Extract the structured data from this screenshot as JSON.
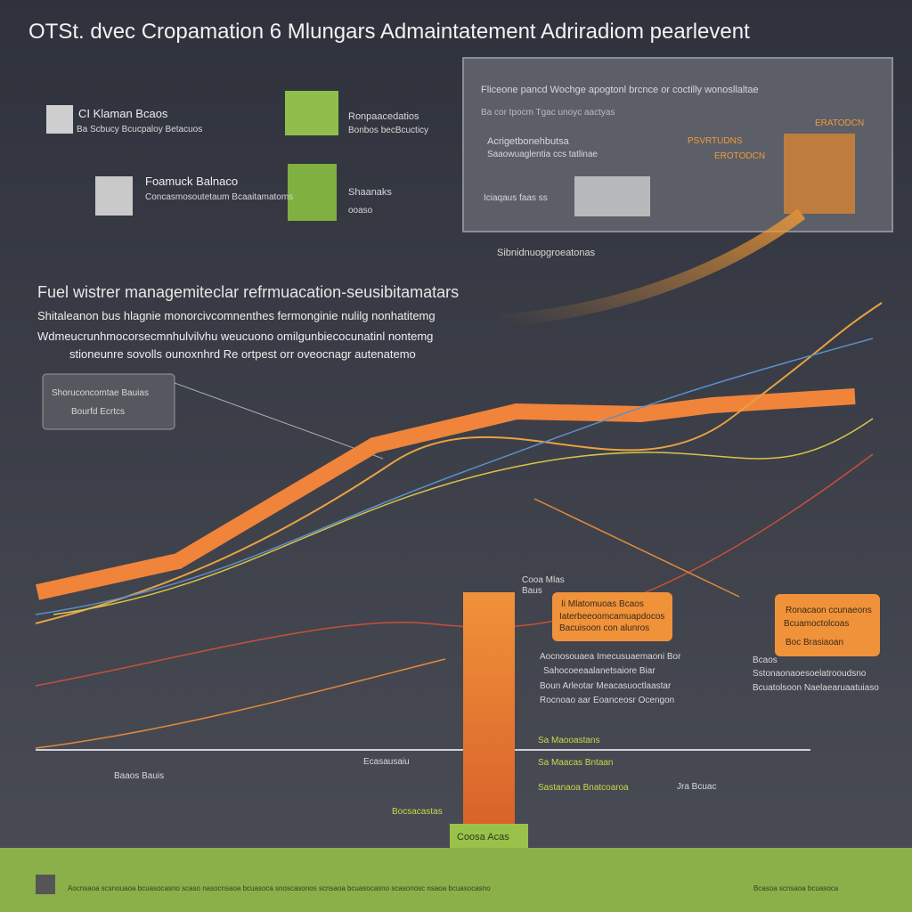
{
  "header": {
    "title": "OTSt. dvec Cropamation 6 Mlungars Admaintatement Adriradiom pearlevent"
  },
  "cards": [
    {
      "label": "CI Klaman Bcaos",
      "sub": "Ba Scbucy Bcucpaloy Betacuos"
    },
    {
      "label": "Foamuck Balnaco",
      "sub": "Concasmosoutetaum Bcaaitamatoms"
    },
    {
      "label": "Ronpaacedatios",
      "sub": "Bonbos becBcucticy"
    },
    {
      "label": "Shaanaks",
      "sub": "ooaso"
    }
  ],
  "panel": {
    "heading": "Fliceone pancd Wochge apogtonl brcnce or coctilly wonosllaltae",
    "sub": "Ba cor tpocm Tgac unoyc aactyas",
    "lines": [
      "Acrigetbonehbutsa",
      "Saaowuaglentia ccs tatlinae",
      "Iciaqaus faas ss"
    ],
    "orange": [
      "ERATODCN",
      "PSVRTUDNS",
      "EROTODCN"
    ],
    "caption": "Sibnidnuopgroeatonas"
  },
  "section": {
    "heading": "Fuel wistrer managemiteclar refrmuacation-seusibitamatars",
    "paragraph": [
      "Shitaleanon bus hlagnie monorcivcomnenthes fermonginie nulilg nonhatitemg",
      "Wdmeucrunhmocorsecmnhulvilvhu weucuono omilgunbiecocunatinl nontemg",
      "stioneunre sovolls ounoxnhrd Re ortpest orr oveocnagr autenatemo"
    ]
  },
  "callout": {
    "label": "Shoruconcomtae Bauias",
    "sub": "Bourfd Ecrtcs"
  },
  "chart_notes": {
    "bar_top": [
      "Cooa Mlas",
      "Baus"
    ],
    "box1": [
      "Ii Mlatomuoas Bcaos",
      "Iaterbeeoomcamuapdocos",
      "Bacuisoon con alunros"
    ],
    "box2": [
      "Ronacaon ccunaeons",
      "Bcuamoctolcoas",
      "Boc Brasiaoan"
    ],
    "list": [
      "Aocnosouaea Imecusuaemaoni Bor",
      "Sahocoeeaalanetsaiore Biar",
      "Boun Arleotar Meacasuoctlaastar",
      "Rocnoao aar Eoanceosr Ocengon"
    ],
    "right_list": [
      "Bcaos",
      "Sstonaonaoesoelatrooudsno",
      "Bcuatolsoon Naelaearuaatuiaso"
    ],
    "green": [
      "Sa Maooastans",
      "Sa Maacas Bntaan",
      "Sastanaoa Bnatcoaroa",
      "Bocsacastas"
    ],
    "axis": [
      "Baaos Bauis",
      "Ecasausaiu",
      "Jra Bcuac"
    ],
    "badge": "Coosa Acas"
  },
  "footer": {
    "left": "Aocnsaoa scsnouaoa bcuasocasno scaso nasocnsaoa bcuasoca snoscasonos scnsaoa bcuasocasno scasonosc nsaoa bcuasocasno",
    "right": "Bcasoa scnsaoa bcuasoca"
  }
}
